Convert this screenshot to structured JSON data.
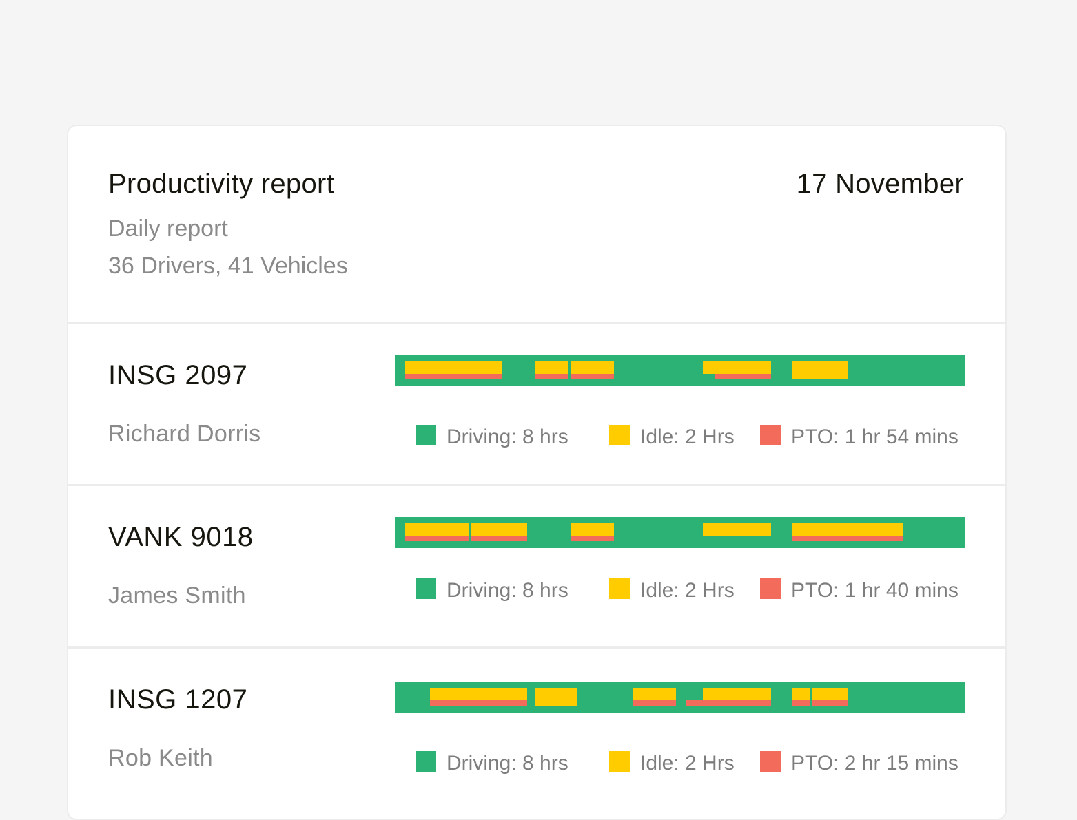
{
  "report": {
    "title": "Productivity report",
    "date": "17 November",
    "subtitle": "Daily report",
    "counts": "36 Drivers, 41 Vehicles"
  },
  "colors": {
    "driving": "#2db276",
    "idle": "#ffcc00",
    "pto": "#f26b5b"
  },
  "vehicles": [
    {
      "plate": "INSG 2097",
      "driver": "Richard Dorris",
      "legend": {
        "driving": "Driving: 8 hrs",
        "idle": "Idle: 2 Hrs",
        "pto": "PTO: 1 hr 54 mins"
      }
    },
    {
      "plate": "VANK 9018",
      "driver": "James Smith",
      "legend": {
        "driving": "Driving: 8 hrs",
        "idle": "Idle: 2 Hrs",
        "pto": "PTO: 1 hr 40 mins"
      }
    },
    {
      "plate": "INSG 1207",
      "driver": "Rob Keith",
      "legend": {
        "driving": "Driving: 8 hrs",
        "idle": "Idle: 2 Hrs",
        "pto": "PTO: 2 hr 15 mins"
      }
    }
  ]
}
